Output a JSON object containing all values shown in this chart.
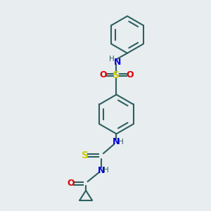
{
  "background_color": "#e8edf0",
  "bond_color": "#2d6060",
  "colors": {
    "N": "#0000dd",
    "O": "#dd0000",
    "S": "#cccc00",
    "H": "#2d6060"
  },
  "lw": 1.5
}
